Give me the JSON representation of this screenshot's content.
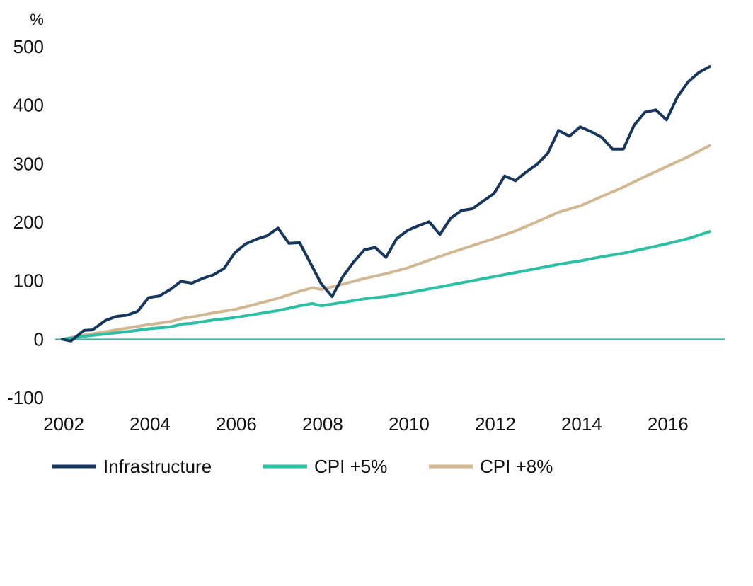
{
  "chart_data": {
    "type": "line",
    "unit_label": "%",
    "x_ticks": [
      "2002",
      "2004",
      "2006",
      "2008",
      "2010",
      "2012",
      "2014",
      "2016"
    ],
    "y_ticks": [
      "500",
      "400",
      "300",
      "200",
      "100",
      "0",
      "-100"
    ],
    "xlim": [
      2002,
      2017.2
    ],
    "ylim": [
      -100,
      500
    ],
    "grid": false,
    "zero_line": true,
    "legend_position": "bottom",
    "colors": {
      "infrastructure": "#17365d",
      "cpi5": "#2bbfa4",
      "cpi8": "#d2b892",
      "zero_line": "#2bbfa4"
    },
    "series": [
      {
        "name": "Infrastructure",
        "color": "#17365d",
        "points": [
          [
            2002.0,
            0
          ],
          [
            2002.2,
            -3
          ],
          [
            2002.5,
            15
          ],
          [
            2002.7,
            16
          ],
          [
            2003.0,
            32
          ],
          [
            2003.25,
            39
          ],
          [
            2003.5,
            41
          ],
          [
            2003.75,
            48
          ],
          [
            2004.0,
            71
          ],
          [
            2004.25,
            74
          ],
          [
            2004.5,
            85
          ],
          [
            2004.75,
            99
          ],
          [
            2005.0,
            96
          ],
          [
            2005.25,
            104
          ],
          [
            2005.5,
            110
          ],
          [
            2005.75,
            121
          ],
          [
            2006.0,
            148
          ],
          [
            2006.25,
            163
          ],
          [
            2006.5,
            171
          ],
          [
            2006.75,
            177
          ],
          [
            2007.0,
            190
          ],
          [
            2007.25,
            164
          ],
          [
            2007.5,
            165
          ],
          [
            2007.75,
            130
          ],
          [
            2008.0,
            95
          ],
          [
            2008.25,
            73
          ],
          [
            2008.5,
            107
          ],
          [
            2008.75,
            132
          ],
          [
            2009.0,
            153
          ],
          [
            2009.25,
            157
          ],
          [
            2009.5,
            140
          ],
          [
            2009.75,
            172
          ],
          [
            2010.0,
            186
          ],
          [
            2010.25,
            194
          ],
          [
            2010.5,
            201
          ],
          [
            2010.75,
            179
          ],
          [
            2011.0,
            207
          ],
          [
            2011.25,
            220
          ],
          [
            2011.5,
            223
          ],
          [
            2011.75,
            236
          ],
          [
            2012.0,
            249
          ],
          [
            2012.25,
            279
          ],
          [
            2012.5,
            271
          ],
          [
            2012.75,
            286
          ],
          [
            2013.0,
            299
          ],
          [
            2013.25,
            318
          ],
          [
            2013.5,
            357
          ],
          [
            2013.75,
            347
          ],
          [
            2014.0,
            363
          ],
          [
            2014.25,
            355
          ],
          [
            2014.5,
            345
          ],
          [
            2014.75,
            325
          ],
          [
            2015.0,
            325
          ],
          [
            2015.25,
            366
          ],
          [
            2015.5,
            388
          ],
          [
            2015.75,
            392
          ],
          [
            2016.0,
            375
          ],
          [
            2016.25,
            414
          ],
          [
            2016.5,
            440
          ],
          [
            2016.75,
            456
          ],
          [
            2017.0,
            466
          ]
        ]
      },
      {
        "name": "CPI +5%",
        "color": "#2bbfa4",
        "points": [
          [
            2002.0,
            0
          ],
          [
            2002.5,
            5
          ],
          [
            2003.0,
            9
          ],
          [
            2003.5,
            13
          ],
          [
            2004.0,
            18
          ],
          [
            2004.5,
            21
          ],
          [
            2004.8,
            26
          ],
          [
            2005.0,
            27
          ],
          [
            2005.5,
            33
          ],
          [
            2006.0,
            37
          ],
          [
            2006.5,
            43
          ],
          [
            2007.0,
            49
          ],
          [
            2007.5,
            57
          ],
          [
            2007.8,
            61
          ],
          [
            2008.0,
            57
          ],
          [
            2008.5,
            63
          ],
          [
            2009.0,
            69
          ],
          [
            2009.5,
            73
          ],
          [
            2010.0,
            79
          ],
          [
            2010.5,
            86
          ],
          [
            2011.0,
            93
          ],
          [
            2011.5,
            100
          ],
          [
            2012.0,
            107
          ],
          [
            2012.5,
            114
          ],
          [
            2013.0,
            121
          ],
          [
            2013.5,
            128
          ],
          [
            2014.0,
            134
          ],
          [
            2014.5,
            141
          ],
          [
            2015.0,
            147
          ],
          [
            2015.5,
            155
          ],
          [
            2016.0,
            163
          ],
          [
            2016.5,
            172
          ],
          [
            2017.0,
            184
          ]
        ]
      },
      {
        "name": "CPI +8%",
        "color": "#d2b892",
        "points": [
          [
            2002.0,
            0
          ],
          [
            2002.5,
            7
          ],
          [
            2003.0,
            13
          ],
          [
            2003.5,
            19
          ],
          [
            2004.0,
            25
          ],
          [
            2004.5,
            30
          ],
          [
            2004.8,
            36
          ],
          [
            2005.0,
            38
          ],
          [
            2005.5,
            45
          ],
          [
            2006.0,
            51
          ],
          [
            2006.5,
            60
          ],
          [
            2007.0,
            70
          ],
          [
            2007.5,
            82
          ],
          [
            2007.8,
            88
          ],
          [
            2008.0,
            85
          ],
          [
            2008.5,
            94
          ],
          [
            2009.0,
            104
          ],
          [
            2009.5,
            112
          ],
          [
            2010.0,
            122
          ],
          [
            2010.5,
            135
          ],
          [
            2011.0,
            148
          ],
          [
            2011.5,
            160
          ],
          [
            2012.0,
            172
          ],
          [
            2012.5,
            185
          ],
          [
            2013.0,
            201
          ],
          [
            2013.5,
            217
          ],
          [
            2014.0,
            228
          ],
          [
            2014.5,
            244
          ],
          [
            2015.0,
            260
          ],
          [
            2015.5,
            278
          ],
          [
            2016.0,
            295
          ],
          [
            2016.5,
            312
          ],
          [
            2017.0,
            331
          ]
        ]
      }
    ]
  }
}
